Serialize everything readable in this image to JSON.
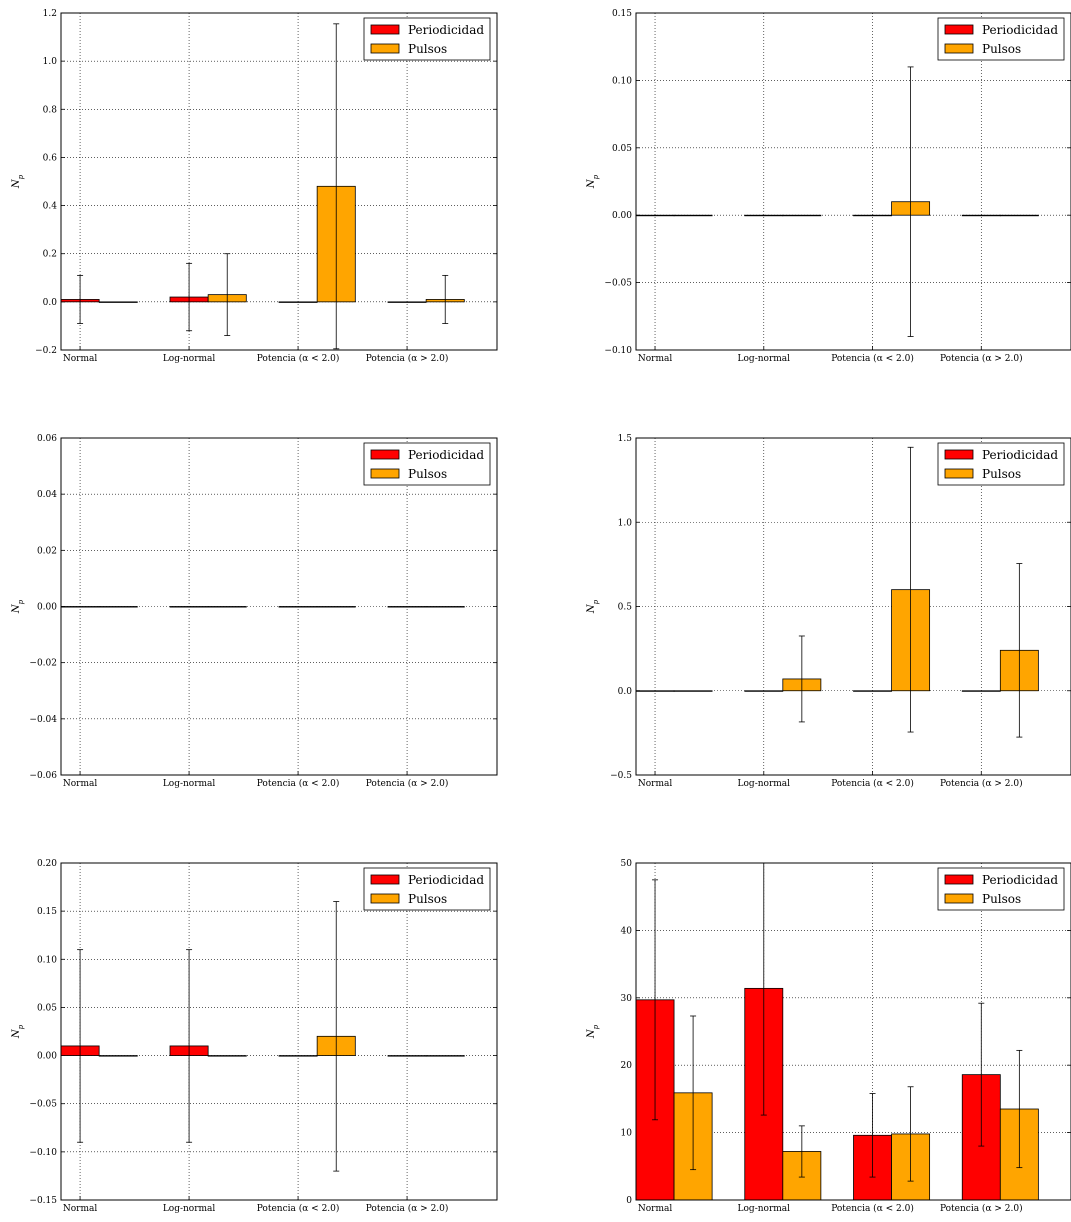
{
  "colors": {
    "periodicidad": "#ff0000",
    "pulsos": "#ffa500",
    "axis": "#000000",
    "grid": "#000000"
  },
  "legend": {
    "series_1": "Periodicidad",
    "series_2": "Pulsos"
  },
  "chart_data": [
    {
      "type": "bar",
      "categories": [
        "Normal",
        "Log-normal",
        "Potencia (α < 2.0)",
        "Potencia (α > 2.0)"
      ],
      "ylabel": "N_p",
      "ylim": [
        -0.2,
        1.2
      ],
      "yticks": [
        "−0.2",
        "0.0",
        "0.2",
        "0.4",
        "0.6",
        "0.8",
        "1.0",
        "1.2"
      ],
      "grid": true,
      "legend_position": "top-right",
      "series": [
        {
          "name": "Periodicidad",
          "values": [
            0.01,
            0.02,
            0.0,
            0.0
          ],
          "errors": [
            0.1,
            0.14,
            0.0,
            0.0
          ]
        },
        {
          "name": "Pulsos",
          "values": [
            0.0,
            0.03,
            0.48,
            0.01
          ],
          "errors": [
            0.0,
            0.17,
            0.675,
            0.1
          ]
        }
      ]
    },
    {
      "type": "bar",
      "categories": [
        "Normal",
        "Log-normal",
        "Potencia (α < 2.0)",
        "Potencia (α > 2.0)"
      ],
      "ylabel": "N_p",
      "ylim": [
        -0.1,
        0.15
      ],
      "yticks": [
        "−0.10",
        "−0.05",
        "0.00",
        "0.05",
        "0.10",
        "0.15"
      ],
      "grid": true,
      "legend_position": "top-right",
      "series": [
        {
          "name": "Periodicidad",
          "values": [
            0.0,
            0.0,
            0.0,
            0.0
          ],
          "errors": [
            0.0,
            0.0,
            0.0,
            0.0
          ]
        },
        {
          "name": "Pulsos",
          "values": [
            0.0,
            0.0,
            0.01,
            0.0
          ],
          "errors": [
            0.0,
            0.0,
            0.1,
            0.0
          ]
        }
      ]
    },
    {
      "type": "bar",
      "categories": [
        "Normal",
        "Log-normal",
        "Potencia (α < 2.0)",
        "Potencia (α > 2.0)"
      ],
      "ylabel": "N_p",
      "ylim": [
        -0.06,
        0.06
      ],
      "yticks": [
        "−0.06",
        "−0.04",
        "−0.02",
        "0.00",
        "0.02",
        "0.04",
        "0.06"
      ],
      "grid": true,
      "legend_position": "top-right",
      "series": [
        {
          "name": "Periodicidad",
          "values": [
            0.0,
            0.0,
            0.0,
            0.0
          ],
          "errors": [
            0.0,
            0.0,
            0.0,
            0.0
          ]
        },
        {
          "name": "Pulsos",
          "values": [
            0.0,
            0.0,
            0.0,
            0.0
          ],
          "errors": [
            0.0,
            0.0,
            0.0,
            0.0
          ]
        }
      ]
    },
    {
      "type": "bar",
      "categories": [
        "Normal",
        "Log-normal",
        "Potencia (α < 2.0)",
        "Potencia (α > 2.0)"
      ],
      "ylabel": "N_p",
      "ylim": [
        -0.5,
        1.5
      ],
      "yticks": [
        "−0.5",
        "0.0",
        "0.5",
        "1.0",
        "1.5"
      ],
      "grid": true,
      "legend_position": "top-right",
      "series": [
        {
          "name": "Periodicidad",
          "values": [
            0.0,
            0.0,
            0.0,
            0.0
          ],
          "errors": [
            0.0,
            0.0,
            0.0,
            0.0
          ]
        },
        {
          "name": "Pulsos",
          "values": [
            0.0,
            0.07,
            0.6,
            0.24
          ],
          "errors": [
            0.0,
            0.255,
            0.845,
            0.515
          ]
        }
      ]
    },
    {
      "type": "bar",
      "categories": [
        "Normal",
        "Log-normal",
        "Potencia (α < 2.0)",
        "Potencia (α > 2.0)"
      ],
      "ylabel": "N_p",
      "ylim": [
        -0.15,
        0.2
      ],
      "yticks": [
        "−0.15",
        "−0.10",
        "−0.05",
        "0.00",
        "0.05",
        "0.10",
        "0.15",
        "0.20"
      ],
      "grid": true,
      "legend_position": "top-right",
      "series": [
        {
          "name": "Periodicidad",
          "values": [
            0.01,
            0.01,
            0.0,
            0.0
          ],
          "errors": [
            0.1,
            0.1,
            0.0,
            0.0
          ]
        },
        {
          "name": "Pulsos",
          "values": [
            0.0,
            0.0,
            0.02,
            0.0
          ],
          "errors": [
            0.0,
            0.0,
            0.14,
            0.0
          ]
        }
      ]
    },
    {
      "type": "bar",
      "categories": [
        "Normal",
        "Log-normal",
        "Potencia (α < 2.0)",
        "Potencia (α > 2.0)"
      ],
      "ylabel": "N_p",
      "ylim": [
        0,
        50
      ],
      "yticks": [
        "0",
        "10",
        "20",
        "30",
        "40",
        "50"
      ],
      "grid": true,
      "legend_position": "top-right",
      "series": [
        {
          "name": "Periodicidad",
          "values": [
            29.7,
            31.4,
            9.6,
            18.6
          ],
          "errors": [
            17.8,
            18.8,
            6.2,
            10.6
          ]
        },
        {
          "name": "Pulsos",
          "values": [
            15.9,
            7.2,
            9.8,
            13.5
          ],
          "errors": [
            11.4,
            3.8,
            7.0,
            8.7
          ]
        }
      ]
    }
  ]
}
